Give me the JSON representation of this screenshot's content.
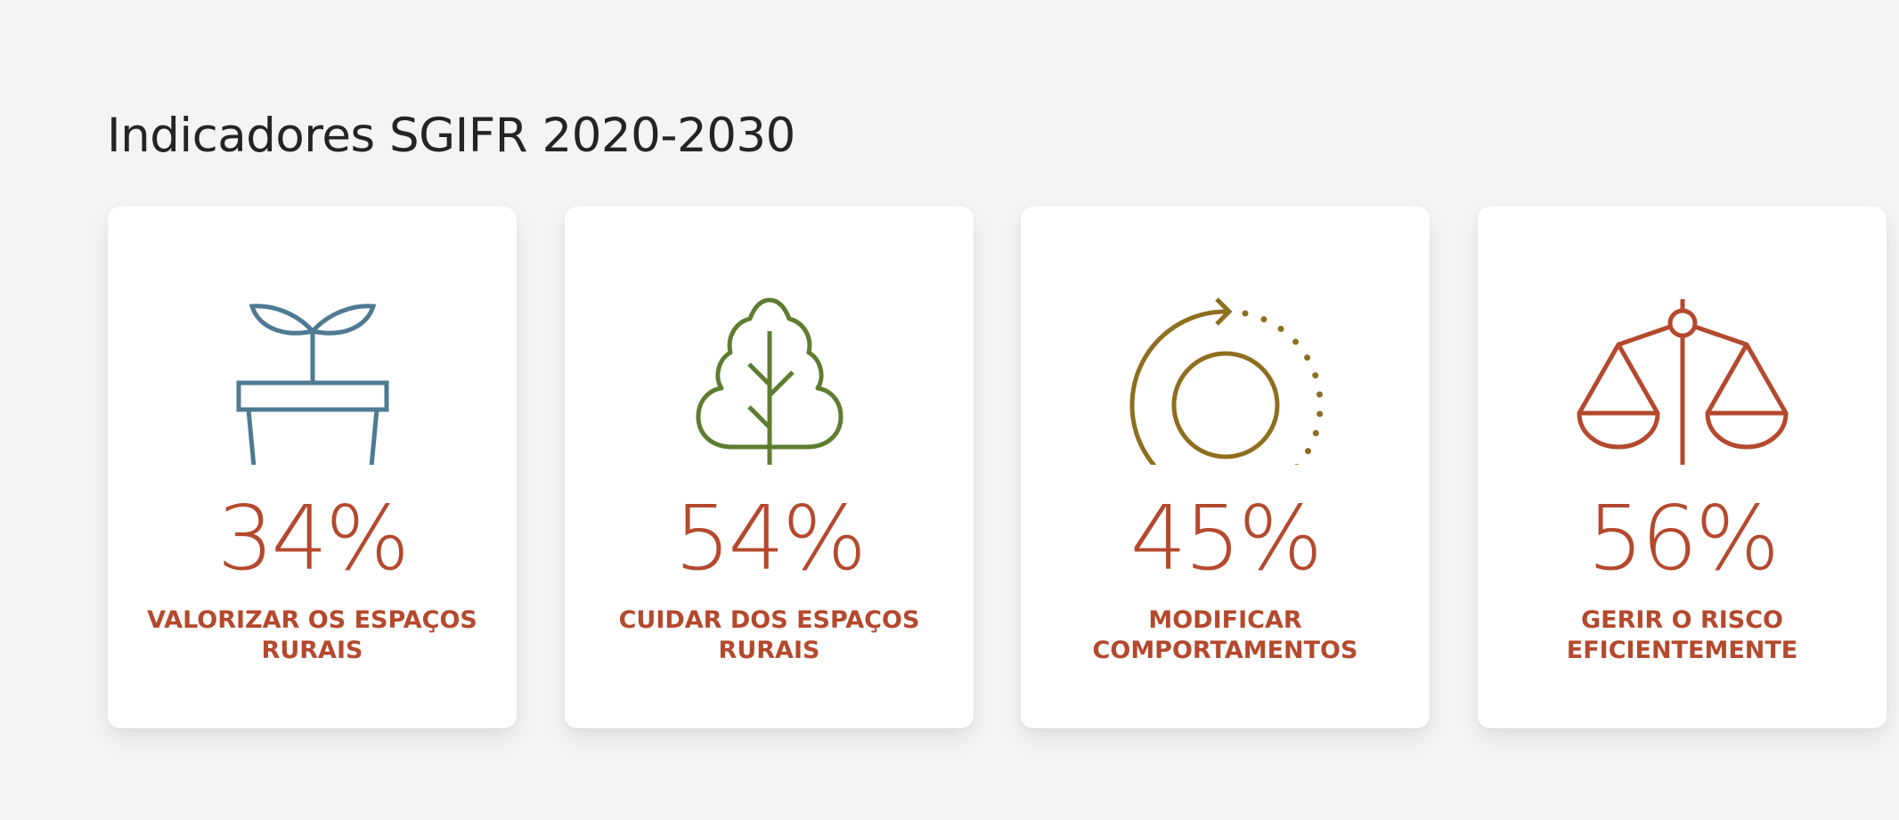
{
  "section": {
    "title": "Indicadores SGIFR 2020-2030"
  },
  "colors": {
    "background": "#f4f4f4",
    "card": "#ffffff",
    "title": "#222426",
    "value_text": "#b4492d",
    "label_text": "#b4492d"
  },
  "indicators": [
    {
      "value": "34%",
      "label": "VALORIZAR OS ESPAÇOS RURAIS",
      "icon": "plant-pot-icon",
      "icon_color": "#4e7a93"
    },
    {
      "value": "54%",
      "label": "CUIDAR DOS ESPAÇOS RURAIS",
      "icon": "tree-icon",
      "icon_color": "#5e7d30"
    },
    {
      "value": "45%",
      "label": "MODIFICAR COMPORTAMENTOS",
      "icon": "cycle-arrow-icon",
      "icon_color": "#8e6e1f"
    },
    {
      "value": "56%",
      "label": "GERIR O RISCO EFICIENTEMENTE",
      "icon": "balance-scale-icon",
      "icon_color": "#b4492d"
    }
  ]
}
